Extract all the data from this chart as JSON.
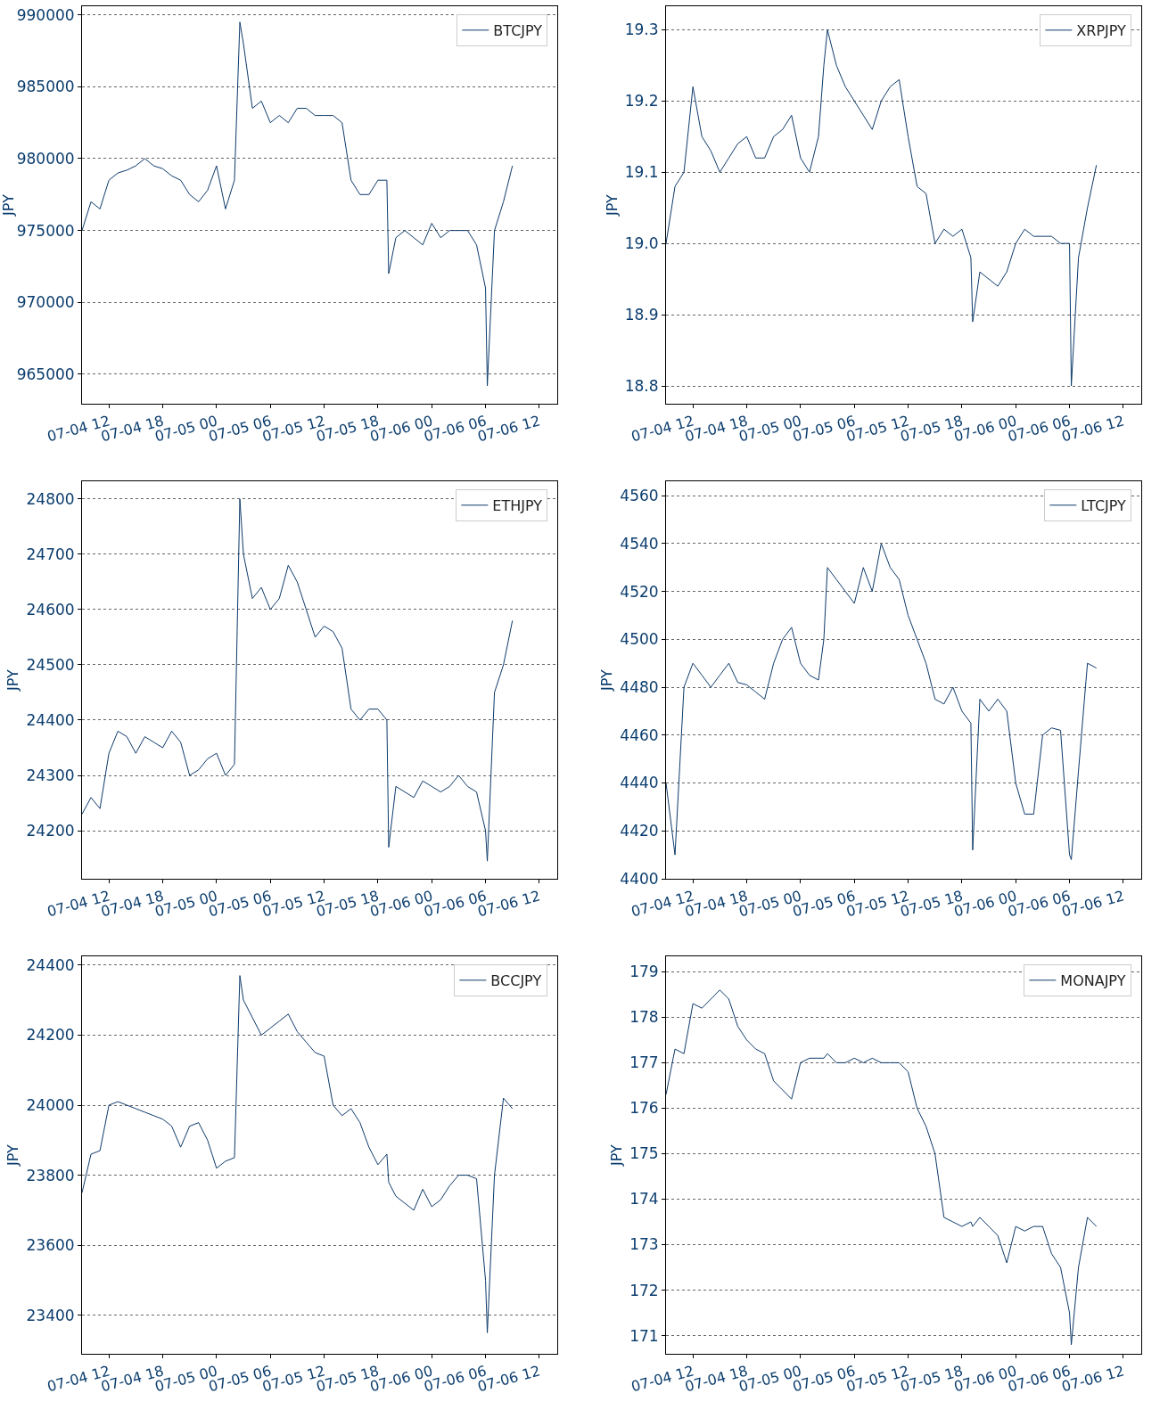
{
  "chart_data": [
    {
      "type": "line",
      "ylabel": "JPY",
      "grid": "y",
      "legend": "top right",
      "xlim": [
        "--07-04T09:00",
        "--07-06T14:00"
      ],
      "xticks": [
        {
          "value": "--07-04T12:00",
          "label": "07-04 12"
        },
        {
          "value": "--07-04T18:00",
          "label": "07-04 18"
        },
        {
          "value": "--07-05T00:00",
          "label": "07-05 00"
        },
        {
          "value": "--07-05T06:00",
          "label": "07-05 06"
        },
        {
          "value": "--07-05T12:00",
          "label": "07-05 12"
        },
        {
          "value": "--07-05T18:00",
          "label": "07-05 18"
        },
        {
          "value": "--07-06T00:00",
          "label": "07-06 00"
        },
        {
          "value": "--07-06T06:00",
          "label": "07-06 06"
        },
        {
          "value": "--07-06T12:00",
          "label": "07-06 12"
        }
      ],
      "ylim": [
        962950,
        990600
      ],
      "yticks": [
        965000,
        970000,
        975000,
        980000,
        985000,
        990000
      ],
      "x": [
        "--07-04T09:00",
        "--07-04T10:00",
        "--07-04T11:00",
        "--07-04T12:00",
        "--07-04T13:00",
        "--07-04T14:00",
        "--07-04T15:00",
        "--07-04T16:00",
        "--07-04T17:00",
        "--07-04T18:00",
        "--07-04T19:00",
        "--07-04T20:00",
        "--07-04T21:00",
        "--07-04T22:00",
        "--07-04T23:00",
        "--07-05T00:00",
        "--07-05T01:00",
        "--07-05T02:00",
        "--07-05T02:36",
        "--07-05T03:00",
        "--07-05T04:00",
        "--07-05T05:00",
        "--07-05T06:00",
        "--07-05T07:00",
        "--07-05T08:00",
        "--07-05T09:00",
        "--07-05T10:00",
        "--07-05T11:00",
        "--07-05T12:00",
        "--07-05T13:00",
        "--07-05T14:00",
        "--07-05T15:00",
        "--07-05T16:00",
        "--07-05T17:00",
        "--07-05T18:00",
        "--07-05T19:00",
        "--07-05T19:12",
        "--07-05T20:00",
        "--07-05T21:00",
        "--07-05T22:00",
        "--07-05T23:00",
        "--07-06T00:00",
        "--07-06T01:00",
        "--07-06T02:00",
        "--07-06T03:00",
        "--07-06T04:00",
        "--07-06T05:00",
        "--07-06T06:00",
        "--07-06T06:12",
        "--07-06T07:00",
        "--07-06T08:00",
        "--07-06T09:00"
      ],
      "series": [
        {
          "name": "BTCJPY",
          "color": "#0d3a6b",
          "values": [
            975000,
            977000,
            976500,
            978500,
            979000,
            979200,
            979500,
            980000,
            979500,
            979300,
            978800,
            978500,
            977500,
            977000,
            977800,
            979500,
            976500,
            978500,
            989500,
            988000,
            983500,
            984000,
            982500,
            983000,
            982500,
            983500,
            983500,
            983000,
            983000,
            983000,
            982500,
            978500,
            977500,
            977500,
            978500,
            978500,
            972000,
            974500,
            975000,
            974500,
            974000,
            975500,
            974500,
            975000,
            975000,
            975000,
            974000,
            971000,
            964200,
            975000,
            977000,
            979500
          ]
        }
      ]
    },
    {
      "type": "line",
      "ylabel": "JPY",
      "grid": "y",
      "legend": "top right",
      "xlim": [
        "--07-04T09:00",
        "--07-06T14:00"
      ],
      "xticks": [
        {
          "value": "--07-04T12:00",
          "label": "07-04 12"
        },
        {
          "value": "--07-04T18:00",
          "label": "07-04 18"
        },
        {
          "value": "--07-05T00:00",
          "label": "07-05 00"
        },
        {
          "value": "--07-05T06:00",
          "label": "07-05 06"
        },
        {
          "value": "--07-05T12:00",
          "label": "07-05 12"
        },
        {
          "value": "--07-05T18:00",
          "label": "07-05 18"
        },
        {
          "value": "--07-06T00:00",
          "label": "07-06 00"
        },
        {
          "value": "--07-06T06:00",
          "label": "07-06 06"
        },
        {
          "value": "--07-06T12:00",
          "label": "07-06 12"
        }
      ],
      "ylim": [
        18.775,
        19.333
      ],
      "yticks": [
        {
          "value": 18.8,
          "label": "18.8"
        },
        {
          "value": 18.9,
          "label": "18.9"
        },
        {
          "value": 19.0,
          "label": "19.0"
        },
        {
          "value": 19.1,
          "label": "19.1"
        },
        {
          "value": 19.2,
          "label": "19.2"
        },
        {
          "value": 19.3,
          "label": "19.3"
        }
      ],
      "x": [
        "--07-04T09:00",
        "--07-04T10:00",
        "--07-04T11:00",
        "--07-04T12:00",
        "--07-04T13:00",
        "--07-04T14:00",
        "--07-04T15:00",
        "--07-04T16:00",
        "--07-04T17:00",
        "--07-04T18:00",
        "--07-04T19:00",
        "--07-04T20:00",
        "--07-04T21:00",
        "--07-04T22:00",
        "--07-04T23:00",
        "--07-05T00:00",
        "--07-05T01:00",
        "--07-05T02:00",
        "--07-05T02:36",
        "--07-05T03:00",
        "--07-05T04:00",
        "--07-05T05:00",
        "--07-05T06:00",
        "--07-05T07:00",
        "--07-05T08:00",
        "--07-05T09:00",
        "--07-05T10:00",
        "--07-05T11:00",
        "--07-05T12:00",
        "--07-05T13:00",
        "--07-05T14:00",
        "--07-05T15:00",
        "--07-05T16:00",
        "--07-05T17:00",
        "--07-05T18:00",
        "--07-05T19:00",
        "--07-05T19:12",
        "--07-05T20:00",
        "--07-05T21:00",
        "--07-05T22:00",
        "--07-05T23:00",
        "--07-06T00:00",
        "--07-06T01:00",
        "--07-06T02:00",
        "--07-06T03:00",
        "--07-06T04:00",
        "--07-06T05:00",
        "--07-06T06:00",
        "--07-06T06:12",
        "--07-06T07:00",
        "--07-06T08:00",
        "--07-06T09:00"
      ],
      "series": [
        {
          "name": "XRPJPY",
          "color": "#0d3a6b",
          "values": [
            19.0,
            19.08,
            19.1,
            19.22,
            19.15,
            19.13,
            19.1,
            19.12,
            19.14,
            19.15,
            19.12,
            19.12,
            19.15,
            19.16,
            19.18,
            19.12,
            19.1,
            19.15,
            19.25,
            19.3,
            19.25,
            19.22,
            19.2,
            19.18,
            19.16,
            19.2,
            19.22,
            19.23,
            19.15,
            19.08,
            19.07,
            19.0,
            19.02,
            19.01,
            19.02,
            18.98,
            18.89,
            18.96,
            18.95,
            18.94,
            18.96,
            19.0,
            19.02,
            19.01,
            19.01,
            19.01,
            19.0,
            19.0,
            18.8,
            18.98,
            19.05,
            19.11
          ]
        }
      ]
    },
    {
      "type": "line",
      "ylabel": "JPY",
      "grid": "y",
      "legend": "top right",
      "xlim": [
        "--07-04T09:00",
        "--07-06T14:00"
      ],
      "xticks": [
        {
          "value": "--07-04T12:00",
          "label": "07-04 12"
        },
        {
          "value": "--07-04T18:00",
          "label": "07-04 18"
        },
        {
          "value": "--07-05T00:00",
          "label": "07-05 00"
        },
        {
          "value": "--07-05T06:00",
          "label": "07-05 06"
        },
        {
          "value": "--07-05T12:00",
          "label": "07-05 12"
        },
        {
          "value": "--07-05T18:00",
          "label": "07-05 18"
        },
        {
          "value": "--07-06T00:00",
          "label": "07-06 00"
        },
        {
          "value": "--07-06T06:00",
          "label": "07-06 06"
        },
        {
          "value": "--07-06T12:00",
          "label": "07-06 12"
        }
      ],
      "ylim": [
        24113,
        24832
      ],
      "yticks": [
        24200,
        24300,
        24400,
        24500,
        24600,
        24700,
        24800
      ],
      "x": [
        "--07-04T09:00",
        "--07-04T10:00",
        "--07-04T11:00",
        "--07-04T12:00",
        "--07-04T13:00",
        "--07-04T14:00",
        "--07-04T15:00",
        "--07-04T16:00",
        "--07-04T17:00",
        "--07-04T18:00",
        "--07-04T19:00",
        "--07-04T20:00",
        "--07-04T21:00",
        "--07-04T22:00",
        "--07-04T23:00",
        "--07-05T00:00",
        "--07-05T01:00",
        "--07-05T02:00",
        "--07-05T02:36",
        "--07-05T03:00",
        "--07-05T04:00",
        "--07-05T05:00",
        "--07-05T06:00",
        "--07-05T07:00",
        "--07-05T08:00",
        "--07-05T09:00",
        "--07-05T10:00",
        "--07-05T11:00",
        "--07-05T12:00",
        "--07-05T13:00",
        "--07-05T14:00",
        "--07-05T15:00",
        "--07-05T16:00",
        "--07-05T17:00",
        "--07-05T18:00",
        "--07-05T19:00",
        "--07-05T19:12",
        "--07-05T20:00",
        "--07-05T21:00",
        "--07-05T22:00",
        "--07-05T23:00",
        "--07-06T00:00",
        "--07-06T01:00",
        "--07-06T02:00",
        "--07-06T03:00",
        "--07-06T04:00",
        "--07-06T05:00",
        "--07-06T06:00",
        "--07-06T06:12",
        "--07-06T07:00",
        "--07-06T08:00",
        "--07-06T09:00"
      ],
      "series": [
        {
          "name": "ETHJPY",
          "color": "#0d3a6b",
          "values": [
            24230,
            24260,
            24240,
            24340,
            24380,
            24370,
            24340,
            24370,
            24360,
            24350,
            24380,
            24360,
            24300,
            24310,
            24330,
            24340,
            24300,
            24320,
            24800,
            24700,
            24620,
            24640,
            24600,
            24620,
            24680,
            24650,
            24600,
            24550,
            24570,
            24560,
            24530,
            24420,
            24400,
            24420,
            24420,
            24400,
            24170,
            24280,
            24270,
            24260,
            24290,
            24280,
            24270,
            24280,
            24300,
            24280,
            24270,
            24200,
            24145,
            24450,
            24500,
            24580
          ]
        }
      ]
    },
    {
      "type": "line",
      "ylabel": "JPY",
      "grid": "y",
      "legend": "top right",
      "xlim": [
        "--07-04T09:00",
        "--07-06T14:00"
      ],
      "xticks": [
        {
          "value": "--07-04T12:00",
          "label": "07-04 12"
        },
        {
          "value": "--07-04T18:00",
          "label": "07-04 18"
        },
        {
          "value": "--07-05T00:00",
          "label": "07-05 00"
        },
        {
          "value": "--07-05T06:00",
          "label": "07-05 06"
        },
        {
          "value": "--07-05T12:00",
          "label": "07-05 12"
        },
        {
          "value": "--07-05T18:00",
          "label": "07-05 18"
        },
        {
          "value": "--07-06T00:00",
          "label": "07-06 00"
        },
        {
          "value": "--07-06T06:00",
          "label": "07-06 06"
        },
        {
          "value": "--07-06T12:00",
          "label": "07-06 12"
        }
      ],
      "ylim": [
        4400,
        4566
      ],
      "yticks": [
        4400,
        4420,
        4440,
        4460,
        4480,
        4500,
        4520,
        4540,
        4560
      ],
      "x": [
        "--07-04T09:00",
        "--07-04T10:00",
        "--07-04T11:00",
        "--07-04T12:00",
        "--07-04T13:00",
        "--07-04T14:00",
        "--07-04T15:00",
        "--07-04T16:00",
        "--07-04T17:00",
        "--07-04T18:00",
        "--07-04T19:00",
        "--07-04T20:00",
        "--07-04T21:00",
        "--07-04T22:00",
        "--07-04T23:00",
        "--07-05T00:00",
        "--07-05T01:00",
        "--07-05T02:00",
        "--07-05T02:36",
        "--07-05T03:00",
        "--07-05T04:00",
        "--07-05T05:00",
        "--07-05T06:00",
        "--07-05T07:00",
        "--07-05T08:00",
        "--07-05T09:00",
        "--07-05T10:00",
        "--07-05T11:00",
        "--07-05T12:00",
        "--07-05T13:00",
        "--07-05T14:00",
        "--07-05T15:00",
        "--07-05T16:00",
        "--07-05T17:00",
        "--07-05T18:00",
        "--07-05T19:00",
        "--07-05T19:12",
        "--07-05T20:00",
        "--07-05T21:00",
        "--07-05T22:00",
        "--07-05T23:00",
        "--07-06T00:00",
        "--07-06T01:00",
        "--07-06T02:00",
        "--07-06T03:00",
        "--07-06T04:00",
        "--07-06T05:00",
        "--07-06T06:00",
        "--07-06T06:12",
        "--07-06T07:00",
        "--07-06T08:00",
        "--07-06T09:00"
      ],
      "series": [
        {
          "name": "LTCJPY",
          "color": "#0d3a6b",
          "values": [
            4440,
            4410,
            4480,
            4490,
            4485,
            4480,
            4485,
            4490,
            4482,
            4481,
            4478,
            4475,
            4490,
            4500,
            4505,
            4490,
            4485,
            4483,
            4500,
            4530,
            4525,
            4520,
            4515,
            4530,
            4520,
            4540,
            4530,
            4525,
            4510,
            4500,
            4490,
            4475,
            4473,
            4480,
            4470,
            4465,
            4412,
            4475,
            4470,
            4475,
            4470,
            4440,
            4427,
            4427,
            4460,
            4463,
            4462,
            4410,
            4408,
            4445,
            4490,
            4488
          ]
        }
      ]
    },
    {
      "type": "line",
      "ylabel": "JPY",
      "grid": "y",
      "legend": "top right",
      "xlim": [
        "--07-04T09:00",
        "--07-06T14:00"
      ],
      "xticks": [
        {
          "value": "--07-04T12:00",
          "label": "07-04 12"
        },
        {
          "value": "--07-04T18:00",
          "label": "07-04 18"
        },
        {
          "value": "--07-05T00:00",
          "label": "07-05 00"
        },
        {
          "value": "--07-05T06:00",
          "label": "07-05 06"
        },
        {
          "value": "--07-05T12:00",
          "label": "07-05 12"
        },
        {
          "value": "--07-05T18:00",
          "label": "07-05 18"
        },
        {
          "value": "--07-06T00:00",
          "label": "07-06 00"
        },
        {
          "value": "--07-06T06:00",
          "label": "07-06 06"
        },
        {
          "value": "--07-06T12:00",
          "label": "07-06 12"
        }
      ],
      "ylim": [
        23290,
        24425
      ],
      "yticks": [
        23400,
        23600,
        23800,
        24000,
        24200,
        24400
      ],
      "x": [
        "--07-04T09:00",
        "--07-04T10:00",
        "--07-04T11:00",
        "--07-04T12:00",
        "--07-04T13:00",
        "--07-04T14:00",
        "--07-04T15:00",
        "--07-04T16:00",
        "--07-04T17:00",
        "--07-04T18:00",
        "--07-04T19:00",
        "--07-04T20:00",
        "--07-04T21:00",
        "--07-04T22:00",
        "--07-04T23:00",
        "--07-05T00:00",
        "--07-05T01:00",
        "--07-05T02:00",
        "--07-05T02:36",
        "--07-05T03:00",
        "--07-05T04:00",
        "--07-05T05:00",
        "--07-05T06:00",
        "--07-05T07:00",
        "--07-05T08:00",
        "--07-05T09:00",
        "--07-05T10:00",
        "--07-05T11:00",
        "--07-05T12:00",
        "--07-05T13:00",
        "--07-05T14:00",
        "--07-05T15:00",
        "--07-05T16:00",
        "--07-05T17:00",
        "--07-05T18:00",
        "--07-05T19:00",
        "--07-05T19:12",
        "--07-05T20:00",
        "--07-05T21:00",
        "--07-05T22:00",
        "--07-05T23:00",
        "--07-06T00:00",
        "--07-06T01:00",
        "--07-06T02:00",
        "--07-06T03:00",
        "--07-06T04:00",
        "--07-06T05:00",
        "--07-06T06:00",
        "--07-06T06:12",
        "--07-06T07:00",
        "--07-06T08:00",
        "--07-06T09:00"
      ],
      "series": [
        {
          "name": "BCCJPY",
          "color": "#0d3a6b",
          "values": [
            23750,
            23860,
            23870,
            24000,
            24010,
            24000,
            23990,
            23980,
            23970,
            23960,
            23940,
            23880,
            23940,
            23950,
            23900,
            23820,
            23840,
            23850,
            24370,
            24300,
            24250,
            24200,
            24220,
            24240,
            24260,
            24210,
            24180,
            24150,
            24140,
            24000,
            23970,
            23990,
            23950,
            23880,
            23830,
            23860,
            23780,
            23740,
            23720,
            23700,
            23760,
            23710,
            23730,
            23770,
            23800,
            23800,
            23790,
            23500,
            23350,
            23800,
            24020,
            23990
          ]
        }
      ]
    },
    {
      "type": "line",
      "ylabel": "JPY",
      "grid": "y",
      "legend": "top right",
      "xlim": [
        "--07-04T09:00",
        "--07-06T14:00"
      ],
      "xticks": [
        {
          "value": "--07-04T12:00",
          "label": "07-04 12"
        },
        {
          "value": "--07-04T18:00",
          "label": "07-04 18"
        },
        {
          "value": "--07-05T00:00",
          "label": "07-05 00"
        },
        {
          "value": "--07-05T06:00",
          "label": "07-05 06"
        },
        {
          "value": "--07-05T12:00",
          "label": "07-05 12"
        },
        {
          "value": "--07-05T18:00",
          "label": "07-05 18"
        },
        {
          "value": "--07-06T00:00",
          "label": "07-06 00"
        },
        {
          "value": "--07-06T06:00",
          "label": "07-06 06"
        },
        {
          "value": "--07-06T12:00",
          "label": "07-06 12"
        }
      ],
      "ylim": [
        170.6,
        179.34
      ],
      "yticks": [
        171,
        172,
        173,
        174,
        175,
        176,
        177,
        178,
        179
      ],
      "x": [
        "--07-04T09:00",
        "--07-04T10:00",
        "--07-04T11:00",
        "--07-04T12:00",
        "--07-04T13:00",
        "--07-04T14:00",
        "--07-04T15:00",
        "--07-04T16:00",
        "--07-04T17:00",
        "--07-04T18:00",
        "--07-04T19:00",
        "--07-04T20:00",
        "--07-04T21:00",
        "--07-04T22:00",
        "--07-04T23:00",
        "--07-05T00:00",
        "--07-05T01:00",
        "--07-05T02:00",
        "--07-05T02:36",
        "--07-05T03:00",
        "--07-05T04:00",
        "--07-05T05:00",
        "--07-05T06:00",
        "--07-05T07:00",
        "--07-05T08:00",
        "--07-05T09:00",
        "--07-05T10:00",
        "--07-05T11:00",
        "--07-05T12:00",
        "--07-05T13:00",
        "--07-05T14:00",
        "--07-05T15:00",
        "--07-05T16:00",
        "--07-05T17:00",
        "--07-05T18:00",
        "--07-05T19:00",
        "--07-05T19:12",
        "--07-05T20:00",
        "--07-05T21:00",
        "--07-05T22:00",
        "--07-05T23:00",
        "--07-06T00:00",
        "--07-06T01:00",
        "--07-06T02:00",
        "--07-06T03:00",
        "--07-06T04:00",
        "--07-06T05:00",
        "--07-06T06:00",
        "--07-06T06:12",
        "--07-06T07:00",
        "--07-06T08:00",
        "--07-06T09:00"
      ],
      "series": [
        {
          "name": "MONAJPY",
          "color": "#0d3a6b",
          "values": [
            176.3,
            177.3,
            177.2,
            178.3,
            178.2,
            178.4,
            178.6,
            178.4,
            177.8,
            177.5,
            177.3,
            177.2,
            176.6,
            176.4,
            176.2,
            177.0,
            177.1,
            177.1,
            177.1,
            177.2,
            177.0,
            177.0,
            177.1,
            177.0,
            177.1,
            177.0,
            177.0,
            177.0,
            176.8,
            176.0,
            175.6,
            175.0,
            173.6,
            173.5,
            173.4,
            173.5,
            173.4,
            173.6,
            173.4,
            173.2,
            172.6,
            173.4,
            173.3,
            173.4,
            173.4,
            172.8,
            172.5,
            171.5,
            170.8,
            172.5,
            173.6,
            173.4
          ]
        }
      ]
    }
  ]
}
